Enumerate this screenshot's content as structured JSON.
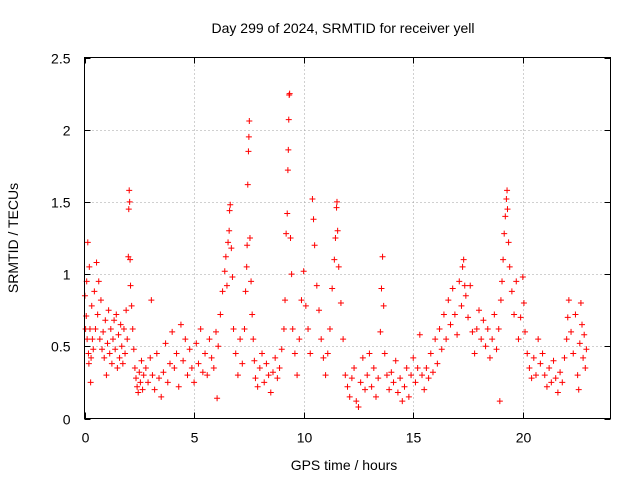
{
  "chart_data": {
    "type": "scatter",
    "title": "Day 299 of 2024, SRMTID for receiver yell",
    "xlabel": "GPS time / hours",
    "ylabel": "SRMTID / TECUs",
    "xlim": [
      0,
      24
    ],
    "ylim": [
      0,
      2.5
    ],
    "xticks": [
      0,
      5,
      10,
      15,
      20
    ],
    "yticks": [
      0,
      0.5,
      1,
      1.5,
      2,
      2.5
    ],
    "xtick_labels": [
      "0",
      "5",
      "10",
      "15",
      "20"
    ],
    "ytick_labels": [
      "0",
      "0.5",
      "1",
      "1.5",
      "2",
      "2.5"
    ],
    "grid": true,
    "marker": "+",
    "color": "#ff0000",
    "series": [
      {
        "name": "SRMTID",
        "points": [
          [
            0.02,
            0.85
          ],
          [
            0.05,
            0.62
          ],
          [
            0.08,
            0.71
          ],
          [
            0.1,
            0.95
          ],
          [
            0.12,
            0.55
          ],
          [
            0.15,
            1.22
          ],
          [
            0.18,
            0.45
          ],
          [
            0.2,
            0.38
          ],
          [
            0.22,
            1.05
          ],
          [
            0.25,
            0.62
          ],
          [
            0.28,
            0.25
          ],
          [
            0.3,
            0.42
          ],
          [
            0.33,
            0.78
          ],
          [
            0.36,
            0.55
          ],
          [
            0.4,
            0.48
          ],
          [
            0.45,
            0.88
          ],
          [
            0.5,
            0.62
          ],
          [
            0.55,
            1.08
          ],
          [
            0.6,
            0.72
          ],
          [
            0.65,
            0.95
          ],
          [
            0.7,
            0.55
          ],
          [
            0.75,
            0.82
          ],
          [
            0.8,
            0.48
          ],
          [
            0.85,
            0.6
          ],
          [
            0.9,
            0.42
          ],
          [
            0.95,
            0.68
          ],
          [
            1.0,
            0.3
          ],
          [
            1.05,
            0.52
          ],
          [
            1.1,
            0.75
          ],
          [
            1.15,
            0.45
          ],
          [
            1.2,
            0.62
          ],
          [
            1.25,
            0.38
          ],
          [
            1.3,
            0.55
          ],
          [
            1.35,
            0.68
          ],
          [
            1.4,
            0.48
          ],
          [
            1.45,
            0.72
          ],
          [
            1.5,
            0.35
          ],
          [
            1.55,
            0.58
          ],
          [
            1.6,
            0.42
          ],
          [
            1.65,
            0.65
          ],
          [
            1.7,
            0.5
          ],
          [
            1.75,
            0.38
          ],
          [
            1.8,
            0.62
          ],
          [
            1.85,
            0.45
          ],
          [
            1.9,
            0.75
          ],
          [
            1.95,
            0.55
          ],
          [
            2.0,
            1.12
          ],
          [
            2.02,
            1.45
          ],
          [
            2.04,
            1.58
          ],
          [
            2.06,
            1.5
          ],
          [
            2.08,
            1.1
          ],
          [
            2.1,
            0.92
          ],
          [
            2.15,
            0.78
          ],
          [
            2.2,
            0.62
          ],
          [
            2.25,
            0.48
          ],
          [
            2.3,
            0.35
          ],
          [
            2.35,
            0.28
          ],
          [
            2.4,
            0.22
          ],
          [
            2.45,
            0.18
          ],
          [
            2.5,
            0.32
          ],
          [
            2.55,
            0.25
          ],
          [
            2.6,
            0.4
          ],
          [
            2.65,
            0.2
          ],
          [
            2.7,
            0.3
          ],
          [
            2.8,
            0.35
          ],
          [
            2.9,
            0.25
          ],
          [
            3.0,
            0.42
          ],
          [
            3.05,
            0.82
          ],
          [
            3.1,
            0.3
          ],
          [
            3.2,
            0.2
          ],
          [
            3.3,
            0.45
          ],
          [
            3.4,
            0.28
          ],
          [
            3.5,
            0.15
          ],
          [
            3.6,
            0.32
          ],
          [
            3.7,
            0.52
          ],
          [
            3.8,
            0.25
          ],
          [
            3.9,
            0.38
          ],
          [
            4.0,
            0.6
          ],
          [
            4.1,
            0.35
          ],
          [
            4.2,
            0.45
          ],
          [
            4.3,
            0.22
          ],
          [
            4.4,
            0.65
          ],
          [
            4.5,
            0.4
          ],
          [
            4.6,
            0.55
          ],
          [
            4.7,
            0.3
          ],
          [
            4.8,
            0.48
          ],
          [
            4.9,
            0.35
          ],
          [
            5.0,
            0.25
          ],
          [
            5.1,
            0.52
          ],
          [
            5.2,
            0.38
          ],
          [
            5.3,
            0.62
          ],
          [
            5.4,
            0.32
          ],
          [
            5.5,
            0.45
          ],
          [
            5.6,
            0.3
          ],
          [
            5.7,
            0.55
          ],
          [
            5.8,
            0.42
          ],
          [
            5.9,
            0.35
          ],
          [
            6.0,
            0.6
          ],
          [
            6.05,
            0.14
          ],
          [
            6.1,
            0.5
          ],
          [
            6.2,
            0.72
          ],
          [
            6.3,
            0.88
          ],
          [
            6.4,
            1.02
          ],
          [
            6.45,
            1.12
          ],
          [
            6.5,
            0.92
          ],
          [
            6.55,
            1.22
          ],
          [
            6.6,
            1.3
          ],
          [
            6.62,
            1.44
          ],
          [
            6.65,
            1.48
          ],
          [
            6.7,
            1.18
          ],
          [
            6.75,
            0.98
          ],
          [
            6.8,
            0.62
          ],
          [
            6.9,
            0.45
          ],
          [
            7.0,
            0.3
          ],
          [
            7.1,
            0.55
          ],
          [
            7.2,
            0.38
          ],
          [
            7.3,
            0.62
          ],
          [
            7.35,
            0.88
          ],
          [
            7.4,
            1.05
          ],
          [
            7.42,
            1.2
          ],
          [
            7.45,
            1.62
          ],
          [
            7.48,
            1.85
          ],
          [
            7.5,
            1.95
          ],
          [
            7.52,
            2.06
          ],
          [
            7.55,
            1.25
          ],
          [
            7.6,
            0.95
          ],
          [
            7.65,
            0.72
          ],
          [
            7.7,
            0.55
          ],
          [
            7.75,
            0.4
          ],
          [
            7.8,
            0.28
          ],
          [
            7.9,
            0.22
          ],
          [
            8.0,
            0.35
          ],
          [
            8.1,
            0.45
          ],
          [
            8.2,
            0.25
          ],
          [
            8.3,
            0.38
          ],
          [
            8.4,
            0.3
          ],
          [
            8.5,
            0.18
          ],
          [
            8.6,
            0.32
          ],
          [
            8.7,
            0.42
          ],
          [
            8.8,
            0.28
          ],
          [
            8.9,
            0.35
          ],
          [
            9.0,
            0.48
          ],
          [
            9.1,
            0.62
          ],
          [
            9.15,
            0.82
          ],
          [
            9.2,
            1.28
          ],
          [
            9.25,
            1.42
          ],
          [
            9.28,
            1.72
          ],
          [
            9.3,
            1.86
          ],
          [
            9.32,
            2.07
          ],
          [
            9.34,
            2.24
          ],
          [
            9.36,
            2.25
          ],
          [
            9.4,
            1.25
          ],
          [
            9.45,
            1.0
          ],
          [
            9.5,
            0.62
          ],
          [
            9.6,
            0.45
          ],
          [
            9.7,
            0.3
          ],
          [
            9.8,
            0.55
          ],
          [
            9.9,
            0.82
          ],
          [
            10.0,
            1.02
          ],
          [
            10.1,
            0.78
          ],
          [
            10.2,
            0.62
          ],
          [
            10.3,
            0.45
          ],
          [
            10.4,
            1.52
          ],
          [
            10.45,
            1.38
          ],
          [
            10.5,
            1.2
          ],
          [
            10.6,
            0.92
          ],
          [
            10.7,
            0.75
          ],
          [
            10.8,
            0.55
          ],
          [
            10.9,
            0.42
          ],
          [
            11.0,
            0.3
          ],
          [
            11.1,
            0.45
          ],
          [
            11.2,
            0.62
          ],
          [
            11.3,
            0.9
          ],
          [
            11.4,
            1.1
          ],
          [
            11.45,
            1.25
          ],
          [
            11.5,
            1.46
          ],
          [
            11.52,
            1.5
          ],
          [
            11.55,
            1.3
          ],
          [
            11.6,
            1.05
          ],
          [
            11.7,
            0.8
          ],
          [
            11.8,
            0.55
          ],
          [
            11.9,
            0.3
          ],
          [
            12.0,
            0.22
          ],
          [
            12.1,
            0.15
          ],
          [
            12.2,
            0.28
          ],
          [
            12.3,
            0.35
          ],
          [
            12.4,
            0.12
          ],
          [
            12.5,
            0.08
          ],
          [
            12.6,
            0.25
          ],
          [
            12.7,
            0.42
          ],
          [
            12.8,
            0.2
          ],
          [
            12.9,
            0.3
          ],
          [
            13.0,
            0.45
          ],
          [
            13.1,
            0.22
          ],
          [
            13.2,
            0.35
          ],
          [
            13.3,
            0.15
          ],
          [
            13.4,
            0.28
          ],
          [
            13.5,
            0.6
          ],
          [
            13.55,
            0.9
          ],
          [
            13.6,
            1.12
          ],
          [
            13.65,
            0.78
          ],
          [
            13.7,
            0.45
          ],
          [
            13.8,
            0.3
          ],
          [
            13.9,
            0.2
          ],
          [
            14.0,
            0.32
          ],
          [
            14.1,
            0.25
          ],
          [
            14.2,
            0.4
          ],
          [
            14.3,
            0.18
          ],
          [
            14.4,
            0.28
          ],
          [
            14.5,
            0.12
          ],
          [
            14.6,
            0.22
          ],
          [
            14.7,
            0.35
          ],
          [
            14.8,
            0.15
          ],
          [
            14.9,
            0.3
          ],
          [
            15.0,
            0.42
          ],
          [
            15.1,
            0.25
          ],
          [
            15.2,
            0.35
          ],
          [
            15.3,
            0.58
          ],
          [
            15.4,
            0.3
          ],
          [
            15.5,
            0.2
          ],
          [
            15.6,
            0.35
          ],
          [
            15.7,
            0.28
          ],
          [
            15.8,
            0.45
          ],
          [
            15.9,
            0.32
          ],
          [
            16.0,
            0.55
          ],
          [
            16.1,
            0.38
          ],
          [
            16.2,
            0.62
          ],
          [
            16.3,
            0.48
          ],
          [
            16.4,
            0.72
          ],
          [
            16.5,
            0.55
          ],
          [
            16.6,
            0.82
          ],
          [
            16.7,
            0.65
          ],
          [
            16.8,
            0.9
          ],
          [
            16.9,
            0.72
          ],
          [
            17.0,
            0.58
          ],
          [
            17.1,
            0.95
          ],
          [
            17.2,
            0.78
          ],
          [
            17.25,
            1.05
          ],
          [
            17.3,
            1.1
          ],
          [
            17.35,
            0.92
          ],
          [
            17.4,
            0.85
          ],
          [
            17.5,
            0.7
          ],
          [
            17.6,
            0.92
          ],
          [
            17.7,
            0.6
          ],
          [
            17.8,
            0.45
          ],
          [
            17.9,
            0.62
          ],
          [
            18.0,
            0.75
          ],
          [
            18.1,
            0.55
          ],
          [
            18.2,
            0.68
          ],
          [
            18.3,
            0.5
          ],
          [
            18.4,
            0.62
          ],
          [
            18.5,
            0.42
          ],
          [
            18.6,
            0.55
          ],
          [
            18.7,
            0.72
          ],
          [
            18.8,
            0.48
          ],
          [
            18.9,
            0.62
          ],
          [
            18.95,
            0.12
          ],
          [
            19.0,
            0.82
          ],
          [
            19.05,
            0.95
          ],
          [
            19.1,
            1.1
          ],
          [
            19.15,
            1.28
          ],
          [
            19.2,
            1.4
          ],
          [
            19.25,
            1.52
          ],
          [
            19.28,
            1.58
          ],
          [
            19.3,
            1.45
          ],
          [
            19.35,
            1.22
          ],
          [
            19.4,
            1.05
          ],
          [
            19.5,
            0.88
          ],
          [
            19.6,
            0.72
          ],
          [
            19.7,
            0.95
          ],
          [
            19.8,
            0.55
          ],
          [
            19.9,
            0.7
          ],
          [
            20.0,
            0.98
          ],
          [
            20.05,
            0.8
          ],
          [
            20.1,
            0.6
          ],
          [
            20.2,
            0.45
          ],
          [
            20.3,
            0.35
          ],
          [
            20.4,
            0.28
          ],
          [
            20.5,
            0.42
          ],
          [
            20.6,
            0.3
          ],
          [
            20.7,
            0.55
          ],
          [
            20.8,
            0.38
          ],
          [
            20.9,
            0.45
          ],
          [
            21.0,
            0.3
          ],
          [
            21.1,
            0.22
          ],
          [
            21.2,
            0.35
          ],
          [
            21.3,
            0.25
          ],
          [
            21.4,
            0.4
          ],
          [
            21.5,
            0.28
          ],
          [
            21.6,
            0.18
          ],
          [
            21.7,
            0.32
          ],
          [
            21.8,
            0.25
          ],
          [
            21.9,
            0.42
          ],
          [
            22.0,
            0.55
          ],
          [
            22.05,
            0.7
          ],
          [
            22.1,
            0.82
          ],
          [
            22.2,
            0.6
          ],
          [
            22.3,
            0.45
          ],
          [
            22.4,
            0.72
          ],
          [
            22.5,
            0.3
          ],
          [
            22.55,
            0.2
          ],
          [
            22.6,
            0.52
          ],
          [
            22.65,
            0.8
          ],
          [
            22.7,
            0.65
          ],
          [
            22.75,
            0.42
          ],
          [
            22.8,
            0.58
          ],
          [
            22.85,
            0.35
          ],
          [
            22.9,
            0.48
          ]
        ]
      }
    ]
  }
}
